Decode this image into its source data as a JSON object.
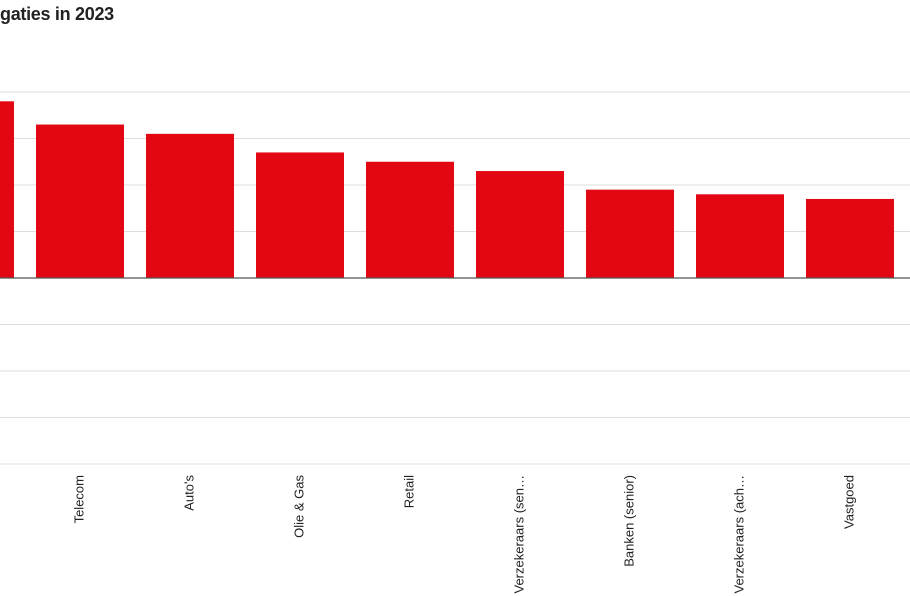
{
  "chart_data": {
    "type": "bar",
    "title": "gaties in 2023",
    "categories": [
      "",
      "Telecom",
      "Auto's",
      "Olie & Gas",
      "Retail",
      "Verzekeraars (sen…",
      "Banken (senior)",
      "Verzekeraars (ach…",
      "Vastgoed"
    ],
    "values": [
      3.8,
      3.3,
      3.1,
      2.7,
      2.5,
      2.3,
      1.9,
      1.8,
      1.7
    ],
    "ylim": [
      -4,
      4.8
    ],
    "grid": true,
    "colors": {
      "bar": "#e30613",
      "grid": "#dddddd",
      "axis": "#555555"
    }
  }
}
